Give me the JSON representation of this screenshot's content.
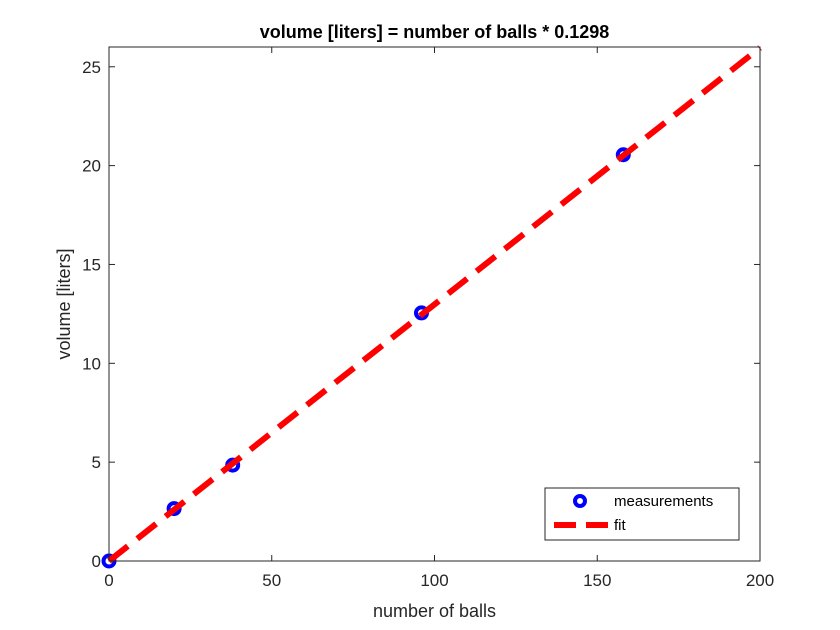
{
  "chart_data": {
    "type": "scatter",
    "title": "volume [liters] = number of balls * 0.1298",
    "xlabel": "number of balls",
    "ylabel": "volume [liters]",
    "xlim": [
      0,
      200
    ],
    "ylim": [
      0,
      26
    ],
    "xticks": [
      0,
      50,
      100,
      150,
      200
    ],
    "yticks": [
      0,
      5,
      10,
      15,
      20,
      25
    ],
    "grid": false,
    "legend_position": "bottom-right",
    "series": [
      {
        "name": "measurements",
        "kind": "markers",
        "marker": "circle",
        "color": "#0000ff",
        "points": [
          [
            0,
            0
          ],
          [
            20,
            2.65
          ],
          [
            38,
            4.85
          ],
          [
            96,
            12.55
          ],
          [
            158,
            20.55
          ]
        ]
      },
      {
        "name": "fit",
        "kind": "dashed-line",
        "color": "#ff0000",
        "slope": 0.1298,
        "points": [
          [
            0,
            0
          ],
          [
            200,
            25.96
          ]
        ]
      }
    ]
  }
}
